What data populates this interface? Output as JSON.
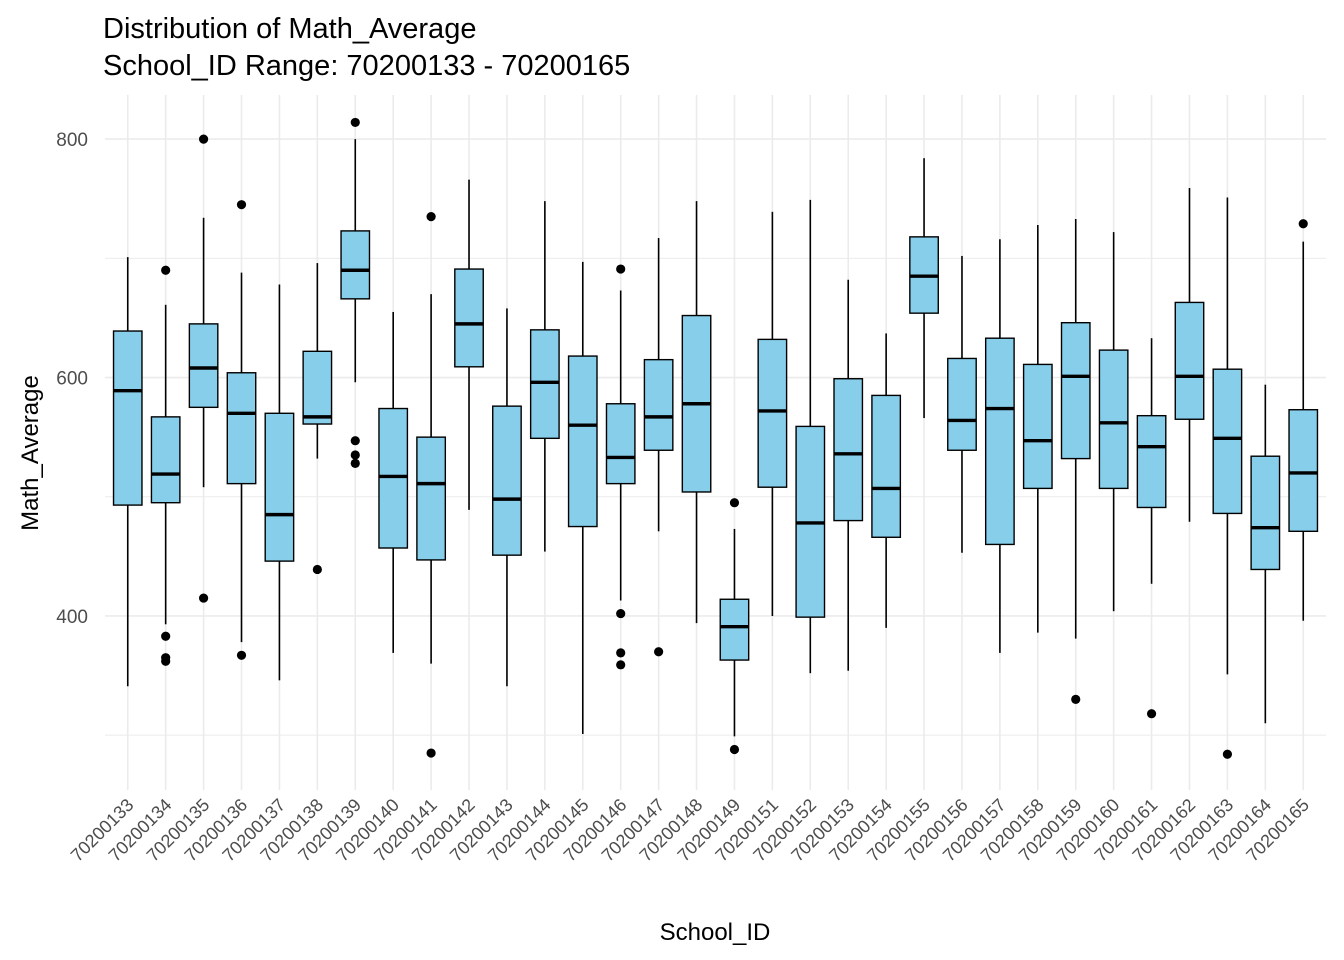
{
  "chart_data": {
    "type": "boxplot",
    "title": "Distribution of Math_Average",
    "subtitle": "School_ID Range: 70200133 - 70200165",
    "xlabel": "School_ID",
    "ylabel": "Math_Average",
    "ylim": [
      254,
      837
    ],
    "yticks": [
      400,
      600,
      800
    ],
    "grid": true,
    "box_fill": "#87CEEB",
    "box_stroke": "#000000",
    "grid_color": "#EBEBEB",
    "categories": [
      "70200133",
      "70200134",
      "70200135",
      "70200136",
      "70200137",
      "70200138",
      "70200139",
      "70200140",
      "70200141",
      "70200142",
      "70200143",
      "70200144",
      "70200145",
      "70200146",
      "70200147",
      "70200148",
      "70200149",
      "70200151",
      "70200152",
      "70200153",
      "70200154",
      "70200155",
      "70200156",
      "70200157",
      "70200158",
      "70200159",
      "70200160",
      "70200161",
      "70200162",
      "70200163",
      "70200164",
      "70200165"
    ],
    "boxes": [
      {
        "min": 341,
        "q1": 493,
        "median": 589,
        "q3": 639,
        "max": 701,
        "outliers": []
      },
      {
        "min": 393,
        "q1": 495,
        "median": 519,
        "q3": 567,
        "max": 661,
        "outliers": [
          690,
          383,
          365,
          362
        ]
      },
      {
        "min": 508,
        "q1": 575,
        "median": 608,
        "q3": 645,
        "max": 734,
        "outliers": [
          800,
          415
        ]
      },
      {
        "min": 378,
        "q1": 511,
        "median": 570,
        "q3": 604,
        "max": 688,
        "outliers": [
          745,
          367
        ]
      },
      {
        "min": 346,
        "q1": 446,
        "median": 485,
        "q3": 570,
        "max": 678,
        "outliers": []
      },
      {
        "min": 532,
        "q1": 561,
        "median": 567,
        "q3": 622,
        "max": 696,
        "outliers": [
          439
        ]
      },
      {
        "min": 596,
        "q1": 666,
        "median": 690,
        "q3": 723,
        "max": 800,
        "outliers": [
          814,
          547,
          535,
          528
        ]
      },
      {
        "min": 369,
        "q1": 457,
        "median": 517,
        "q3": 574,
        "max": 655,
        "outliers": []
      },
      {
        "min": 360,
        "q1": 447,
        "median": 511,
        "q3": 550,
        "max": 670,
        "outliers": [
          735,
          285
        ]
      },
      {
        "min": 489,
        "q1": 609,
        "median": 645,
        "q3": 691,
        "max": 766,
        "outliers": []
      },
      {
        "min": 341,
        "q1": 451,
        "median": 498,
        "q3": 576,
        "max": 658,
        "outliers": []
      },
      {
        "min": 454,
        "q1": 549,
        "median": 596,
        "q3": 640,
        "max": 748,
        "outliers": []
      },
      {
        "min": 301,
        "q1": 475,
        "median": 560,
        "q3": 618,
        "max": 697,
        "outliers": []
      },
      {
        "min": 413,
        "q1": 511,
        "median": 533,
        "q3": 578,
        "max": 673,
        "outliers": [
          691,
          402,
          369,
          359
        ]
      },
      {
        "min": 471,
        "q1": 539,
        "median": 567,
        "q3": 615,
        "max": 717,
        "outliers": [
          370
        ]
      },
      {
        "min": 394,
        "q1": 504,
        "median": 578,
        "q3": 652,
        "max": 748,
        "outliers": []
      },
      {
        "min": 299,
        "q1": 363,
        "median": 391,
        "q3": 414,
        "max": 473,
        "outliers": [
          495,
          288
        ]
      },
      {
        "min": 400,
        "q1": 508,
        "median": 572,
        "q3": 632,
        "max": 739,
        "outliers": []
      },
      {
        "min": 352,
        "q1": 399,
        "median": 478,
        "q3": 559,
        "max": 749,
        "outliers": []
      },
      {
        "min": 354,
        "q1": 480,
        "median": 536,
        "q3": 599,
        "max": 682,
        "outliers": []
      },
      {
        "min": 390,
        "q1": 466,
        "median": 507,
        "q3": 585,
        "max": 637,
        "outliers": []
      },
      {
        "min": 566,
        "q1": 654,
        "median": 685,
        "q3": 718,
        "max": 784,
        "outliers": []
      },
      {
        "min": 453,
        "q1": 539,
        "median": 564,
        "q3": 616,
        "max": 702,
        "outliers": []
      },
      {
        "min": 369,
        "q1": 460,
        "median": 574,
        "q3": 633,
        "max": 716,
        "outliers": []
      },
      {
        "min": 386,
        "q1": 507,
        "median": 547,
        "q3": 611,
        "max": 728,
        "outliers": []
      },
      {
        "min": 381,
        "q1": 532,
        "median": 601,
        "q3": 646,
        "max": 733,
        "outliers": [
          330
        ]
      },
      {
        "min": 404,
        "q1": 507,
        "median": 562,
        "q3": 623,
        "max": 722,
        "outliers": []
      },
      {
        "min": 427,
        "q1": 491,
        "median": 542,
        "q3": 568,
        "max": 633,
        "outliers": [
          318
        ]
      },
      {
        "min": 479,
        "q1": 565,
        "median": 601,
        "q3": 663,
        "max": 759,
        "outliers": []
      },
      {
        "min": 351,
        "q1": 486,
        "median": 549,
        "q3": 607,
        "max": 751,
        "outliers": [
          284
        ]
      },
      {
        "min": 310,
        "q1": 439,
        "median": 474,
        "q3": 534,
        "max": 594,
        "outliers": []
      },
      {
        "min": 396,
        "q1": 471,
        "median": 520,
        "q3": 573,
        "max": 714,
        "outliers": [
          729
        ]
      }
    ]
  }
}
